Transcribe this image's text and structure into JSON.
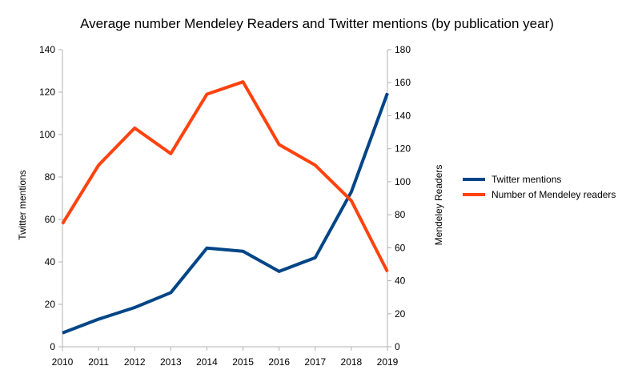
{
  "chart_data": {
    "type": "line",
    "title": "Average number Mendeley Readers and Twitter mentions (by publication year)",
    "categories": [
      "2010",
      "2011",
      "2012",
      "2013",
      "2014",
      "2015",
      "2016",
      "2017",
      "2018",
      "2019"
    ],
    "xlabel": "",
    "y_left": {
      "label": "Twitter mentions",
      "lim": [
        0,
        140
      ],
      "ticks": [
        "0",
        "20",
        "40",
        "60",
        "80",
        "100",
        "120",
        "140"
      ]
    },
    "y_right": {
      "label": "Mendeley Readers",
      "lim": [
        0,
        180
      ],
      "ticks": [
        "0",
        "20",
        "40",
        "60",
        "80",
        "100",
        "120",
        "140",
        "160",
        "180"
      ]
    },
    "grid": false,
    "legend_position": "right",
    "series": [
      {
        "name": "Twitter mentions",
        "axis": "left",
        "color": "#004586",
        "values": [
          6.5,
          13,
          18.5,
          25.5,
          46.5,
          45,
          35.5,
          42,
          73,
          119.5
        ]
      },
      {
        "name": "Number of Mendeley readers",
        "axis": "right",
        "color": "#ff420e",
        "values": [
          74.5,
          110,
          132.5,
          117,
          153,
          160.5,
          122.5,
          110,
          88.5,
          45.5
        ]
      }
    ]
  }
}
